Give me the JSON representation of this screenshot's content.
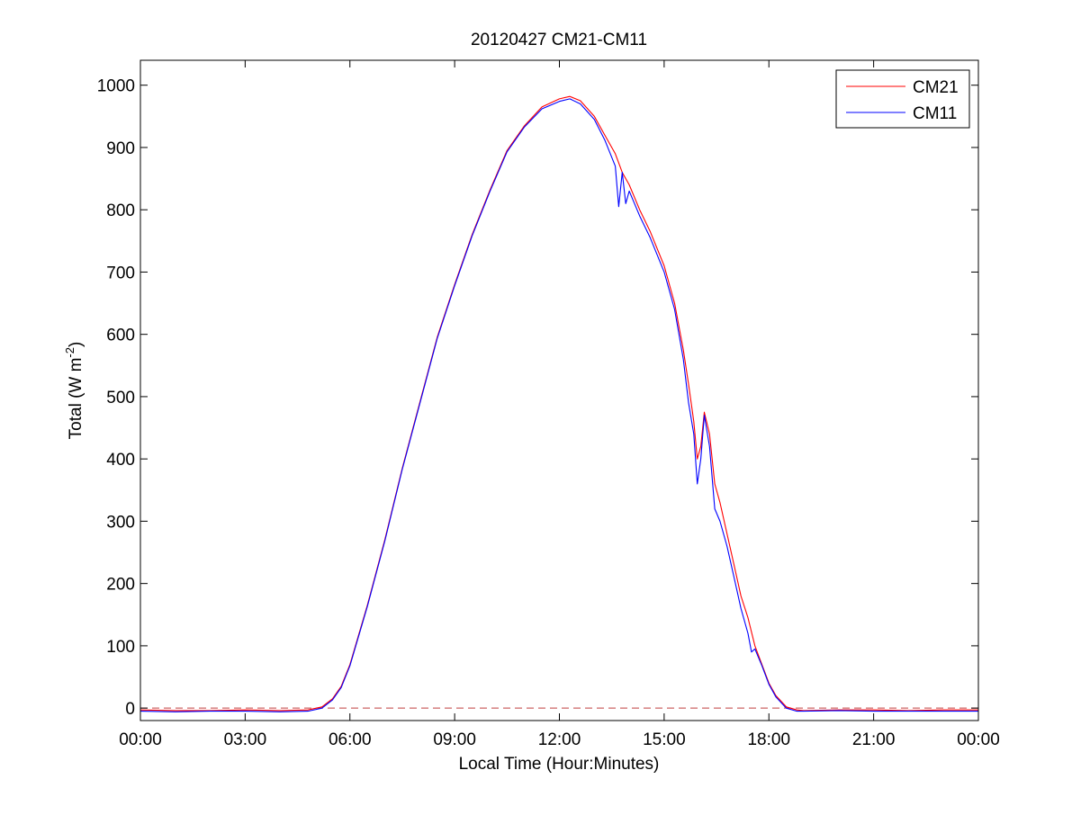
{
  "chart_data": {
    "type": "line",
    "title": "20120427 CM21-CM11",
    "xlabel": "Local Time (Hour:Minutes)",
    "ylabel_main": "Total (W m",
    "ylabel_exp": "-2",
    "ylabel_close": ")",
    "x_unit": "hours",
    "xlim": [
      0,
      24
    ],
    "ylim": [
      -20,
      1040
    ],
    "x_ticks": [
      {
        "value": 0,
        "label": "00:00"
      },
      {
        "value": 3,
        "label": "03:00"
      },
      {
        "value": 6,
        "label": "06:00"
      },
      {
        "value": 9,
        "label": "09:00"
      },
      {
        "value": 12,
        "label": "12:00"
      },
      {
        "value": 15,
        "label": "15:00"
      },
      {
        "value": 18,
        "label": "18:00"
      },
      {
        "value": 21,
        "label": "21:00"
      },
      {
        "value": 24,
        "label": "00:00"
      }
    ],
    "y_ticks": [
      0,
      100,
      200,
      300,
      400,
      500,
      600,
      700,
      800,
      900,
      1000
    ],
    "grid": false,
    "legend_position": "top-right",
    "reference_line": {
      "y": 0,
      "style": "dashed",
      "color": "#c04040"
    },
    "series": [
      {
        "name": "CM21",
        "color": "#ff0000",
        "x": [
          0,
          1,
          2,
          3,
          4,
          4.8,
          5.2,
          5.5,
          5.75,
          6.0,
          6.5,
          7.0,
          7.5,
          8.0,
          8.5,
          9.0,
          9.5,
          10.0,
          10.5,
          11.0,
          11.5,
          12.0,
          12.3,
          12.6,
          13.0,
          13.3,
          13.6,
          13.8,
          14.0,
          14.3,
          14.6,
          15.0,
          15.3,
          15.55,
          15.7,
          15.85,
          15.95,
          16.05,
          16.15,
          16.3,
          16.45,
          16.6,
          16.8,
          17.0,
          17.2,
          17.4,
          17.6,
          17.8,
          18.0,
          18.2,
          18.5,
          18.8,
          19.0,
          20,
          21,
          22,
          23,
          24
        ],
        "y": [
          -3,
          -4,
          -4,
          -3,
          -4,
          -3,
          2,
          15,
          35,
          70,
          165,
          270,
          385,
          490,
          595,
          680,
          760,
          830,
          895,
          935,
          965,
          978,
          982,
          975,
          950,
          920,
          890,
          860,
          840,
          800,
          765,
          710,
          650,
          575,
          520,
          460,
          400,
          420,
          475,
          440,
          360,
          330,
          280,
          230,
          180,
          145,
          100,
          70,
          40,
          20,
          2,
          -3,
          -4,
          -3,
          -3,
          -4,
          -3,
          -3
        ]
      },
      {
        "name": "CM11",
        "color": "#0000ff",
        "x": [
          0,
          1,
          2,
          3,
          4,
          4.8,
          5.2,
          5.5,
          5.75,
          6.0,
          6.5,
          7.0,
          7.5,
          8.0,
          8.5,
          9.0,
          9.5,
          10.0,
          10.5,
          11.0,
          11.5,
          12.0,
          12.3,
          12.6,
          13.0,
          13.3,
          13.6,
          13.7,
          13.8,
          13.9,
          14.0,
          14.3,
          14.6,
          15.0,
          15.3,
          15.55,
          15.7,
          15.85,
          15.95,
          16.05,
          16.15,
          16.3,
          16.45,
          16.6,
          16.8,
          17.0,
          17.2,
          17.4,
          17.5,
          17.6,
          17.8,
          18.0,
          18.2,
          18.5,
          18.8,
          19.0,
          20,
          21,
          22,
          23,
          24
        ],
        "y": [
          -5,
          -6,
          -5,
          -5,
          -6,
          -5,
          0,
          13,
          33,
          68,
          163,
          268,
          383,
          488,
          593,
          678,
          758,
          828,
          893,
          933,
          962,
          974,
          978,
          970,
          945,
          912,
          870,
          805,
          860,
          810,
          830,
          790,
          755,
          700,
          640,
          560,
          490,
          440,
          360,
          400,
          470,
          420,
          320,
          300,
          260,
          210,
          160,
          120,
          90,
          95,
          68,
          38,
          18,
          0,
          -5,
          -5,
          -4,
          -5,
          -5,
          -5,
          -5
        ]
      }
    ]
  }
}
